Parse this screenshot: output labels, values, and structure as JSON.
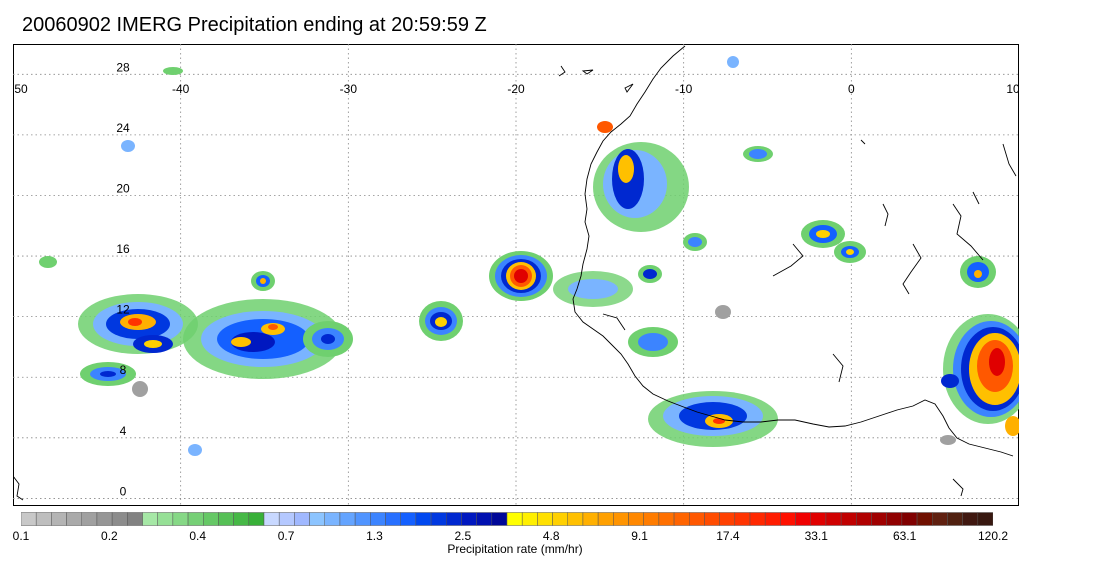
{
  "title": "20060902 IMERG Precipitation ending at 20:59:59 Z",
  "map": {
    "lon_ticks": [
      "-50",
      "-40",
      "-30",
      "-20",
      "-10",
      "0",
      "10"
    ],
    "lat_ticks": [
      "28",
      "24",
      "20",
      "16",
      "12",
      "8",
      "4",
      "0"
    ],
    "extent": {
      "lon_min": -50,
      "lon_max": 10,
      "lat_min": -0.5,
      "lat_max": 30
    },
    "gridlines": true,
    "background": "#ffffff",
    "coastline_color": "#000000"
  },
  "colorbar": {
    "title": "Precipitation rate (mm/hr)",
    "tick_labels": [
      "0.1",
      "0.2",
      "0.4",
      "0.7",
      "1.3",
      "2.5",
      "4.8",
      "9.1",
      "17.4",
      "33.1",
      "63.1",
      "120.2"
    ],
    "colors": [
      "#c8c8c8",
      "#bebebe",
      "#b4b4b4",
      "#aaaaaa",
      "#a0a0a0",
      "#969696",
      "#8c8c8c",
      "#828282",
      "#a6e8a6",
      "#96e096",
      "#86d886",
      "#76d076",
      "#66c866",
      "#56c056",
      "#46b846",
      "#38b038",
      "#c8d8ff",
      "#b4c8ff",
      "#a0b8ff",
      "#8cc4ff",
      "#7ab4ff",
      "#64a4ff",
      "#5094ff",
      "#3c84ff",
      "#2870ff",
      "#1460ff",
      "#0048f0",
      "#0038e0",
      "#0028d0",
      "#0018c0",
      "#0010b0",
      "#000898",
      "#ffff00",
      "#ffef00",
      "#ffe000",
      "#ffd000",
      "#ffc000",
      "#ffb000",
      "#ffa000",
      "#ff9400",
      "#ff8800",
      "#ff7c00",
      "#ff7000",
      "#ff6400",
      "#ff5800",
      "#ff4c00",
      "#ff4000",
      "#ff3400",
      "#ff2800",
      "#ff1c00",
      "#ff1000",
      "#f00000",
      "#e00000",
      "#d00000",
      "#c00000",
      "#b00000",
      "#a00000",
      "#900000",
      "#800000",
      "#701000",
      "#602010",
      "#502010",
      "#401810",
      "#381810"
    ]
  }
}
